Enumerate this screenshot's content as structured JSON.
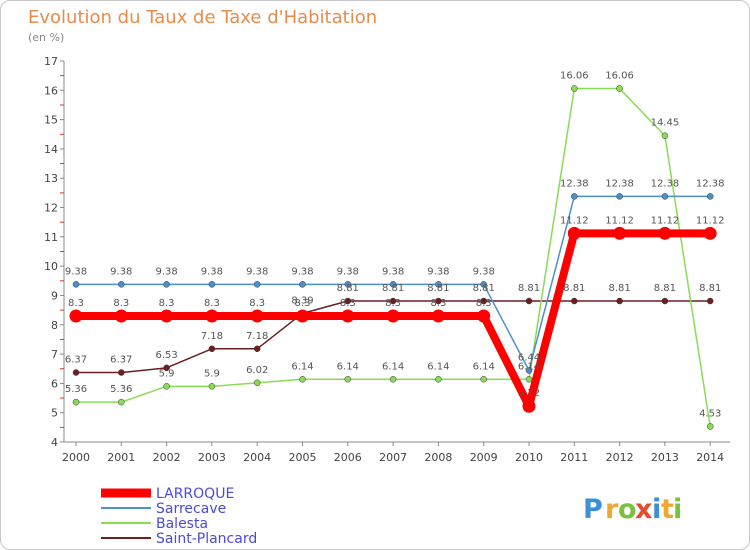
{
  "title": "Evolution du Taux de Taxe d'Habitation",
  "subtitle": "(en %)",
  "chart_data": {
    "type": "line",
    "title": "Evolution du Taux de Taxe d'Habitation",
    "ylabel": "(en %)",
    "xlabel": "",
    "ylim": [
      4,
      17
    ],
    "yticks": [
      "4",
      "5",
      "6",
      "7",
      "8",
      "9",
      "10",
      "11",
      "12",
      "13",
      "14",
      "15",
      "16",
      "17"
    ],
    "categories": [
      "2000",
      "2001",
      "2002",
      "2003",
      "2004",
      "2005",
      "2006",
      "2007",
      "2008",
      "2009",
      "2010",
      "2011",
      "2012",
      "2013",
      "2014"
    ],
    "series": [
      {
        "name": "Saint-Plancard",
        "color": "#6b1f1f",
        "values": [
          6.37,
          6.37,
          6.53,
          7.18,
          7.18,
          8.39,
          8.81,
          8.81,
          8.81,
          8.81,
          8.81,
          8.81,
          8.81,
          8.81,
          8.81
        ],
        "labels": [
          "6.37",
          "6.37",
          "6.53",
          "7.18",
          "7.18",
          "8.39",
          "8.81",
          "8.81",
          "8.81",
          "8.81",
          "8.81",
          "8.81",
          "8.81",
          "8.81",
          "8.81"
        ]
      },
      {
        "name": "Balesta",
        "color": "#88dd55",
        "values": [
          5.36,
          5.36,
          5.9,
          5.9,
          6.02,
          6.14,
          6.14,
          6.14,
          6.14,
          6.14,
          6.14,
          16.06,
          16.06,
          14.45,
          4.53
        ],
        "labels": [
          "5.36",
          "5.36",
          "5.9",
          "5.9",
          "6.02",
          "6.14",
          "6.14",
          "6.14",
          "6.14",
          "6.14",
          "6.14",
          "16.06",
          "16.06",
          "14.45",
          "4.53"
        ]
      },
      {
        "name": "Sarrecave",
        "color": "#4f8fc9",
        "values": [
          9.38,
          9.38,
          9.38,
          9.38,
          9.38,
          9.38,
          9.38,
          9.38,
          9.38,
          9.38,
          6.44,
          12.38,
          12.38,
          12.38,
          12.38
        ],
        "labels": [
          "9.38",
          "9.38",
          "9.38",
          "9.38",
          "9.38",
          "9.38",
          "9.38",
          "9.38",
          "9.38",
          "9.38",
          "6.44",
          "12.38",
          "12.38",
          "12.38",
          "12.38"
        ]
      },
      {
        "name": "LARROQUE",
        "color": "#ff0000",
        "values": [
          8.3,
          8.3,
          8.3,
          8.3,
          8.3,
          8.3,
          8.3,
          8.3,
          8.3,
          8.3,
          5.22,
          11.12,
          11.12,
          11.12,
          11.12
        ],
        "labels": [
          "8.3",
          "8.3",
          "8.3",
          "8.3",
          "8.3",
          "8.3",
          "8.3",
          "8.3",
          "8.3",
          "8.3",
          "5.22",
          "11.12",
          "11.12",
          "11.12",
          "11.12"
        ]
      }
    ],
    "legend": [
      "LARROQUE",
      "Sarrecave",
      "Balesta",
      "Saint-Plancard"
    ],
    "legend_position": "bottom-left"
  },
  "brand": {
    "letters": [
      "P",
      "r",
      "o",
      "x",
      "i",
      "t",
      "i"
    ],
    "colors": [
      "#3d8fd8",
      "#f0a830",
      "#7ac142",
      "#e24c2b",
      "#3d8fd8",
      "#f0a830",
      "#7ac142"
    ]
  }
}
